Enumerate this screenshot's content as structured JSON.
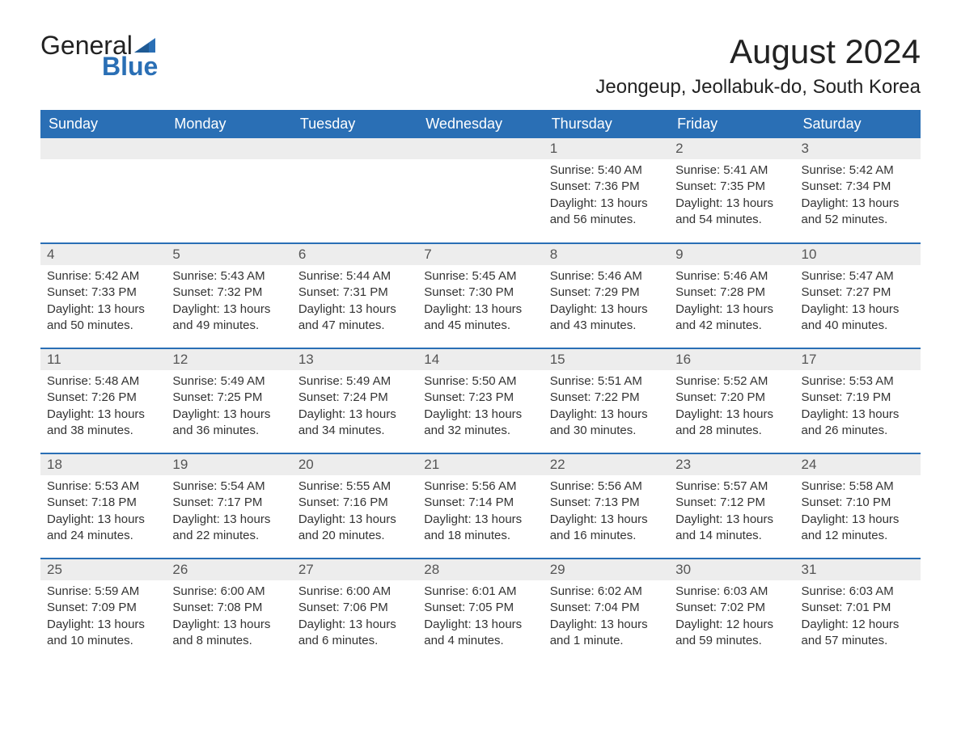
{
  "logo": {
    "text_general": "General",
    "text_blue": "Blue"
  },
  "title": "August 2024",
  "location": "Jeongeup, Jeollabuk-do, South Korea",
  "colors": {
    "header_bg": "#2a6fb5",
    "header_text": "#ffffff",
    "daynum_bg": "#ededed",
    "daynum_text": "#555555",
    "body_text": "#333333",
    "row_border": "#2a6fb5",
    "logo_blue": "#2a6fb5"
  },
  "columns": [
    "Sunday",
    "Monday",
    "Tuesday",
    "Wednesday",
    "Thursday",
    "Friday",
    "Saturday"
  ],
  "weeks": [
    [
      {
        "day": null
      },
      {
        "day": null
      },
      {
        "day": null
      },
      {
        "day": null
      },
      {
        "day": 1,
        "sunrise": "Sunrise: 5:40 AM",
        "sunset": "Sunset: 7:36 PM",
        "daylight": "Daylight: 13 hours and 56 minutes."
      },
      {
        "day": 2,
        "sunrise": "Sunrise: 5:41 AM",
        "sunset": "Sunset: 7:35 PM",
        "daylight": "Daylight: 13 hours and 54 minutes."
      },
      {
        "day": 3,
        "sunrise": "Sunrise: 5:42 AM",
        "sunset": "Sunset: 7:34 PM",
        "daylight": "Daylight: 13 hours and 52 minutes."
      }
    ],
    [
      {
        "day": 4,
        "sunrise": "Sunrise: 5:42 AM",
        "sunset": "Sunset: 7:33 PM",
        "daylight": "Daylight: 13 hours and 50 minutes."
      },
      {
        "day": 5,
        "sunrise": "Sunrise: 5:43 AM",
        "sunset": "Sunset: 7:32 PM",
        "daylight": "Daylight: 13 hours and 49 minutes."
      },
      {
        "day": 6,
        "sunrise": "Sunrise: 5:44 AM",
        "sunset": "Sunset: 7:31 PM",
        "daylight": "Daylight: 13 hours and 47 minutes."
      },
      {
        "day": 7,
        "sunrise": "Sunrise: 5:45 AM",
        "sunset": "Sunset: 7:30 PM",
        "daylight": "Daylight: 13 hours and 45 minutes."
      },
      {
        "day": 8,
        "sunrise": "Sunrise: 5:46 AM",
        "sunset": "Sunset: 7:29 PM",
        "daylight": "Daylight: 13 hours and 43 minutes."
      },
      {
        "day": 9,
        "sunrise": "Sunrise: 5:46 AM",
        "sunset": "Sunset: 7:28 PM",
        "daylight": "Daylight: 13 hours and 42 minutes."
      },
      {
        "day": 10,
        "sunrise": "Sunrise: 5:47 AM",
        "sunset": "Sunset: 7:27 PM",
        "daylight": "Daylight: 13 hours and 40 minutes."
      }
    ],
    [
      {
        "day": 11,
        "sunrise": "Sunrise: 5:48 AM",
        "sunset": "Sunset: 7:26 PM",
        "daylight": "Daylight: 13 hours and 38 minutes."
      },
      {
        "day": 12,
        "sunrise": "Sunrise: 5:49 AM",
        "sunset": "Sunset: 7:25 PM",
        "daylight": "Daylight: 13 hours and 36 minutes."
      },
      {
        "day": 13,
        "sunrise": "Sunrise: 5:49 AM",
        "sunset": "Sunset: 7:24 PM",
        "daylight": "Daylight: 13 hours and 34 minutes."
      },
      {
        "day": 14,
        "sunrise": "Sunrise: 5:50 AM",
        "sunset": "Sunset: 7:23 PM",
        "daylight": "Daylight: 13 hours and 32 minutes."
      },
      {
        "day": 15,
        "sunrise": "Sunrise: 5:51 AM",
        "sunset": "Sunset: 7:22 PM",
        "daylight": "Daylight: 13 hours and 30 minutes."
      },
      {
        "day": 16,
        "sunrise": "Sunrise: 5:52 AM",
        "sunset": "Sunset: 7:20 PM",
        "daylight": "Daylight: 13 hours and 28 minutes."
      },
      {
        "day": 17,
        "sunrise": "Sunrise: 5:53 AM",
        "sunset": "Sunset: 7:19 PM",
        "daylight": "Daylight: 13 hours and 26 minutes."
      }
    ],
    [
      {
        "day": 18,
        "sunrise": "Sunrise: 5:53 AM",
        "sunset": "Sunset: 7:18 PM",
        "daylight": "Daylight: 13 hours and 24 minutes."
      },
      {
        "day": 19,
        "sunrise": "Sunrise: 5:54 AM",
        "sunset": "Sunset: 7:17 PM",
        "daylight": "Daylight: 13 hours and 22 minutes."
      },
      {
        "day": 20,
        "sunrise": "Sunrise: 5:55 AM",
        "sunset": "Sunset: 7:16 PM",
        "daylight": "Daylight: 13 hours and 20 minutes."
      },
      {
        "day": 21,
        "sunrise": "Sunrise: 5:56 AM",
        "sunset": "Sunset: 7:14 PM",
        "daylight": "Daylight: 13 hours and 18 minutes."
      },
      {
        "day": 22,
        "sunrise": "Sunrise: 5:56 AM",
        "sunset": "Sunset: 7:13 PM",
        "daylight": "Daylight: 13 hours and 16 minutes."
      },
      {
        "day": 23,
        "sunrise": "Sunrise: 5:57 AM",
        "sunset": "Sunset: 7:12 PM",
        "daylight": "Daylight: 13 hours and 14 minutes."
      },
      {
        "day": 24,
        "sunrise": "Sunrise: 5:58 AM",
        "sunset": "Sunset: 7:10 PM",
        "daylight": "Daylight: 13 hours and 12 minutes."
      }
    ],
    [
      {
        "day": 25,
        "sunrise": "Sunrise: 5:59 AM",
        "sunset": "Sunset: 7:09 PM",
        "daylight": "Daylight: 13 hours and 10 minutes."
      },
      {
        "day": 26,
        "sunrise": "Sunrise: 6:00 AM",
        "sunset": "Sunset: 7:08 PM",
        "daylight": "Daylight: 13 hours and 8 minutes."
      },
      {
        "day": 27,
        "sunrise": "Sunrise: 6:00 AM",
        "sunset": "Sunset: 7:06 PM",
        "daylight": "Daylight: 13 hours and 6 minutes."
      },
      {
        "day": 28,
        "sunrise": "Sunrise: 6:01 AM",
        "sunset": "Sunset: 7:05 PM",
        "daylight": "Daylight: 13 hours and 4 minutes."
      },
      {
        "day": 29,
        "sunrise": "Sunrise: 6:02 AM",
        "sunset": "Sunset: 7:04 PM",
        "daylight": "Daylight: 13 hours and 1 minute."
      },
      {
        "day": 30,
        "sunrise": "Sunrise: 6:03 AM",
        "sunset": "Sunset: 7:02 PM",
        "daylight": "Daylight: 12 hours and 59 minutes."
      },
      {
        "day": 31,
        "sunrise": "Sunrise: 6:03 AM",
        "sunset": "Sunset: 7:01 PM",
        "daylight": "Daylight: 12 hours and 57 minutes."
      }
    ]
  ]
}
